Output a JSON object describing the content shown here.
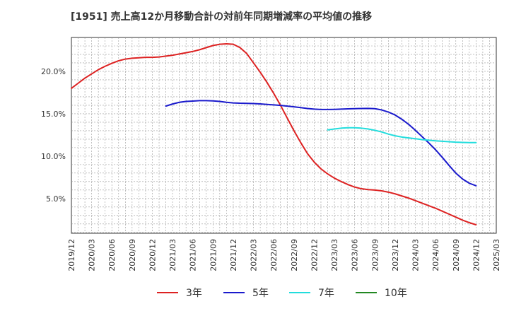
{
  "chart_data": {
    "type": "line",
    "title": "[1951]  売上高12か月移動合計の対前年同期増減率の平均値の推移",
    "xlabel": "",
    "ylabel": "",
    "x_ticks": [
      "2019/12",
      "2020/03",
      "2020/06",
      "2020/09",
      "2020/12",
      "2021/03",
      "2021/06",
      "2021/09",
      "2021/12",
      "2022/03",
      "2022/06",
      "2022/09",
      "2022/12",
      "2023/03",
      "2023/06",
      "2023/09",
      "2023/12",
      "2024/03",
      "2024/06",
      "2024/09",
      "2024/12",
      "2025/03"
    ],
    "y_ticks": [
      5.0,
      10.0,
      15.0,
      20.0
    ],
    "y_tick_labels": [
      "5.0%",
      "10.0%",
      "15.0%",
      "20.0%"
    ],
    "ylim": [
      0.9,
      24.0
    ],
    "grid": true,
    "legend_position": "bottom",
    "series": [
      {
        "name": "3年",
        "color": "#dd2222",
        "points": [
          [
            "2019/12",
            18.0
          ],
          [
            "2020/01",
            18.6
          ],
          [
            "2020/02",
            19.2
          ],
          [
            "2020/03",
            19.7
          ],
          [
            "2020/04",
            20.2
          ],
          [
            "2020/05",
            20.6
          ],
          [
            "2020/06",
            20.95
          ],
          [
            "2020/07",
            21.25
          ],
          [
            "2020/08",
            21.45
          ],
          [
            "2020/09",
            21.55
          ],
          [
            "2020/10",
            21.6
          ],
          [
            "2020/11",
            21.65
          ],
          [
            "2020/12",
            21.65
          ],
          [
            "2021/01",
            21.7
          ],
          [
            "2021/02",
            21.8
          ],
          [
            "2021/03",
            21.9
          ],
          [
            "2021/04",
            22.05
          ],
          [
            "2021/05",
            22.2
          ],
          [
            "2021/06",
            22.35
          ],
          [
            "2021/07",
            22.55
          ],
          [
            "2021/08",
            22.8
          ],
          [
            "2021/09",
            23.05
          ],
          [
            "2021/10",
            23.2
          ],
          [
            "2021/11",
            23.25
          ],
          [
            "2021/12",
            23.2
          ],
          [
            "2022/01",
            22.8
          ],
          [
            "2022/02",
            22.1
          ],
          [
            "2022/03",
            21.0
          ],
          [
            "2022/04",
            19.9
          ],
          [
            "2022/05",
            18.7
          ],
          [
            "2022/06",
            17.4
          ],
          [
            "2022/07",
            16.0
          ],
          [
            "2022/08",
            14.5
          ],
          [
            "2022/09",
            13.0
          ],
          [
            "2022/10",
            11.6
          ],
          [
            "2022/11",
            10.3
          ],
          [
            "2022/12",
            9.3
          ],
          [
            "2023/01",
            8.5
          ],
          [
            "2023/02",
            7.9
          ],
          [
            "2023/03",
            7.4
          ],
          [
            "2023/04",
            7.0
          ],
          [
            "2023/05",
            6.65
          ],
          [
            "2023/06",
            6.35
          ],
          [
            "2023/07",
            6.15
          ],
          [
            "2023/08",
            6.05
          ],
          [
            "2023/09",
            6.0
          ],
          [
            "2023/10",
            5.9
          ],
          [
            "2023/11",
            5.75
          ],
          [
            "2023/12",
            5.55
          ],
          [
            "2024/01",
            5.3
          ],
          [
            "2024/02",
            5.05
          ],
          [
            "2024/03",
            4.75
          ],
          [
            "2024/04",
            4.45
          ],
          [
            "2024/05",
            4.15
          ],
          [
            "2024/06",
            3.85
          ],
          [
            "2024/07",
            3.5
          ],
          [
            "2024/08",
            3.15
          ],
          [
            "2024/09",
            2.8
          ],
          [
            "2024/10",
            2.45
          ],
          [
            "2024/11",
            2.15
          ],
          [
            "2024/12",
            1.9
          ]
        ]
      },
      {
        "name": "5年",
        "color": "#1a1acc",
        "points": [
          [
            "2021/02",
            15.9
          ],
          [
            "2021/03",
            16.15
          ],
          [
            "2021/04",
            16.35
          ],
          [
            "2021/05",
            16.45
          ],
          [
            "2021/06",
            16.5
          ],
          [
            "2021/07",
            16.55
          ],
          [
            "2021/08",
            16.55
          ],
          [
            "2021/09",
            16.52
          ],
          [
            "2021/10",
            16.45
          ],
          [
            "2021/11",
            16.35
          ],
          [
            "2021/12",
            16.28
          ],
          [
            "2022/01",
            16.24
          ],
          [
            "2022/02",
            16.22
          ],
          [
            "2022/03",
            16.2
          ],
          [
            "2022/04",
            16.16
          ],
          [
            "2022/05",
            16.1
          ],
          [
            "2022/06",
            16.05
          ],
          [
            "2022/07",
            15.98
          ],
          [
            "2022/08",
            15.9
          ],
          [
            "2022/09",
            15.82
          ],
          [
            "2022/10",
            15.72
          ],
          [
            "2022/11",
            15.62
          ],
          [
            "2022/12",
            15.55
          ],
          [
            "2023/01",
            15.5
          ],
          [
            "2023/02",
            15.5
          ],
          [
            "2023/03",
            15.52
          ],
          [
            "2023/04",
            15.55
          ],
          [
            "2023/05",
            15.58
          ],
          [
            "2023/06",
            15.6
          ],
          [
            "2023/07",
            15.62
          ],
          [
            "2023/08",
            15.63
          ],
          [
            "2023/09",
            15.6
          ],
          [
            "2023/10",
            15.45
          ],
          [
            "2023/11",
            15.2
          ],
          [
            "2023/12",
            14.85
          ],
          [
            "2024/01",
            14.35
          ],
          [
            "2024/02",
            13.75
          ],
          [
            "2024/03",
            13.05
          ],
          [
            "2024/04",
            12.3
          ],
          [
            "2024/05",
            11.55
          ],
          [
            "2024/06",
            10.75
          ],
          [
            "2024/07",
            9.85
          ],
          [
            "2024/08",
            8.9
          ],
          [
            "2024/09",
            8.0
          ],
          [
            "2024/10",
            7.3
          ],
          [
            "2024/11",
            6.8
          ],
          [
            "2024/12",
            6.5
          ]
        ]
      },
      {
        "name": "7年",
        "color": "#22dddd",
        "points": [
          [
            "2023/02",
            13.1
          ],
          [
            "2023/03",
            13.2
          ],
          [
            "2023/04",
            13.3
          ],
          [
            "2023/05",
            13.35
          ],
          [
            "2023/06",
            13.35
          ],
          [
            "2023/07",
            13.3
          ],
          [
            "2023/08",
            13.2
          ],
          [
            "2023/09",
            13.05
          ],
          [
            "2023/10",
            12.85
          ],
          [
            "2023/11",
            12.6
          ],
          [
            "2023/12",
            12.4
          ],
          [
            "2024/01",
            12.25
          ],
          [
            "2024/02",
            12.15
          ],
          [
            "2024/03",
            12.05
          ],
          [
            "2024/04",
            11.95
          ],
          [
            "2024/05",
            11.88
          ],
          [
            "2024/06",
            11.8
          ],
          [
            "2024/07",
            11.75
          ],
          [
            "2024/08",
            11.7
          ],
          [
            "2024/09",
            11.65
          ],
          [
            "2024/10",
            11.62
          ],
          [
            "2024/11",
            11.6
          ],
          [
            "2024/12",
            11.6
          ]
        ]
      },
      {
        "name": "10年",
        "color": "#228822",
        "points": []
      }
    ]
  }
}
